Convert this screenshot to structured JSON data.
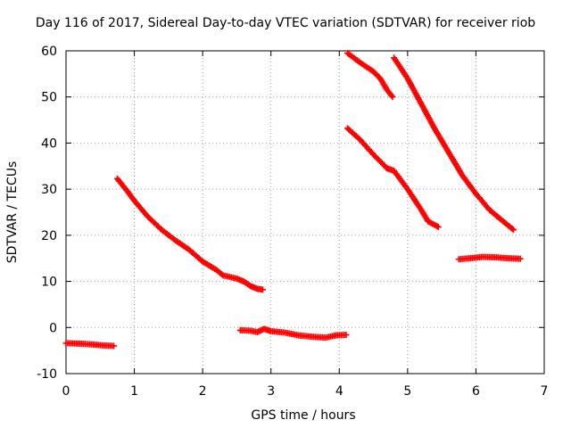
{
  "chart_data": {
    "type": "scatter",
    "title": "Day 116 of 2017, Sidereal Day-to-day VTEC variation (SDTVAR) for receiver riob",
    "xlabel": "GPS time / hours",
    "ylabel": "SDTVAR / TECUs",
    "xlim": [
      0,
      7
    ],
    "ylim": [
      -10,
      60
    ],
    "xticks": [
      0,
      1,
      2,
      3,
      4,
      5,
      6,
      7
    ],
    "yticks": [
      -10,
      0,
      10,
      20,
      30,
      40,
      50,
      60
    ],
    "xtick_labels": [
      "0",
      "1",
      "2",
      "3",
      "4",
      "5",
      "6",
      "7"
    ],
    "ytick_labels": [
      "-10",
      "0",
      "10",
      "20",
      "30",
      "40",
      "50",
      "60"
    ],
    "grid": true,
    "marker_color": "#ff0000",
    "series": [
      {
        "points": [
          [
            0.0,
            -3.4
          ],
          [
            0.2,
            -3.5
          ],
          [
            0.4,
            -3.7
          ],
          [
            0.55,
            -3.9
          ],
          [
            0.7,
            -4.0
          ]
        ]
      },
      {
        "points": [
          [
            0.75,
            32.3
          ],
          [
            0.9,
            29.5
          ],
          [
            1.0,
            27.5
          ],
          [
            1.2,
            24.0
          ],
          [
            1.4,
            21.2
          ],
          [
            1.6,
            18.9
          ],
          [
            1.8,
            16.9
          ],
          [
            2.0,
            14.3
          ],
          [
            2.2,
            12.5
          ],
          [
            2.3,
            11.3
          ],
          [
            2.5,
            10.6
          ],
          [
            2.6,
            10.0
          ],
          [
            2.7,
            9.0
          ],
          [
            2.8,
            8.4
          ],
          [
            2.88,
            8.2
          ]
        ]
      },
      {
        "points": [
          [
            2.55,
            -0.6
          ],
          [
            2.7,
            -0.7
          ],
          [
            2.8,
            -1.0
          ],
          [
            2.9,
            -0.3
          ],
          [
            3.0,
            -0.8
          ],
          [
            3.2,
            -1.1
          ],
          [
            3.4,
            -1.7
          ],
          [
            3.6,
            -2.0
          ],
          [
            3.8,
            -2.2
          ],
          [
            3.95,
            -1.7
          ],
          [
            4.1,
            -1.6
          ]
        ]
      },
      {
        "points": [
          [
            4.12,
            59.5
          ],
          [
            4.3,
            57.5
          ],
          [
            4.5,
            55.5
          ],
          [
            4.6,
            54.0
          ],
          [
            4.7,
            51.5
          ],
          [
            4.78,
            50.0
          ]
        ]
      },
      {
        "points": [
          [
            4.12,
            43.2
          ],
          [
            4.3,
            40.8
          ],
          [
            4.5,
            37.5
          ],
          [
            4.7,
            34.5
          ],
          [
            4.8,
            34.0
          ],
          [
            5.0,
            30.0
          ],
          [
            5.2,
            25.5
          ],
          [
            5.3,
            23.0
          ],
          [
            5.45,
            21.8
          ]
        ]
      },
      {
        "points": [
          [
            4.8,
            58.5
          ],
          [
            5.0,
            54.0
          ],
          [
            5.2,
            48.5
          ],
          [
            5.4,
            43.0
          ],
          [
            5.6,
            38.0
          ],
          [
            5.8,
            33.0
          ],
          [
            6.0,
            29.0
          ],
          [
            6.2,
            25.5
          ],
          [
            6.4,
            23.0
          ],
          [
            6.55,
            21.2
          ]
        ]
      },
      {
        "points": [
          [
            5.75,
            14.8
          ],
          [
            5.9,
            15.0
          ],
          [
            6.1,
            15.3
          ],
          [
            6.3,
            15.2
          ],
          [
            6.5,
            15.0
          ],
          [
            6.65,
            14.9
          ]
        ]
      }
    ]
  }
}
